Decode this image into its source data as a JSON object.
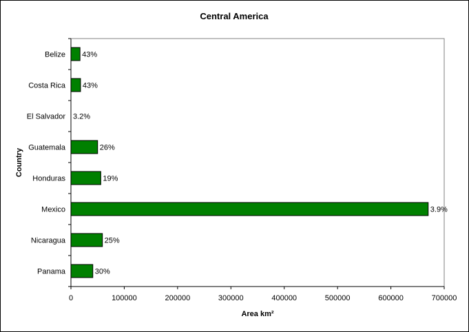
{
  "chart_data": {
    "type": "bar",
    "orientation": "horizontal",
    "title": "Central America",
    "xlabel": "Area km²",
    "ylabel": "Country",
    "categories": [
      "Belize",
      "Costa Rica",
      "El Salvador",
      "Guatemala",
      "Honduras",
      "Mexico",
      "Nicaragua",
      "Panama"
    ],
    "series": [
      {
        "values": [
          17000,
          18000,
          0,
          50000,
          56000,
          670000,
          59000,
          41000
        ]
      }
    ],
    "data_labels": [
      "43%",
      "43%",
      "3.2%",
      "26%",
      "19%",
      "3.9%",
      "25%",
      "30%"
    ],
    "xlim": [
      0,
      700000
    ],
    "xticks": [
      0,
      100000,
      200000,
      300000,
      400000,
      500000,
      600000,
      700000
    ],
    "grid": false,
    "legend": "none",
    "bar_color": "#008000"
  }
}
